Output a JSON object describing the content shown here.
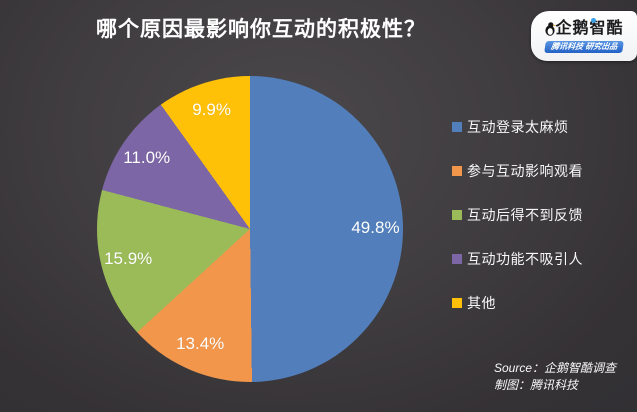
{
  "title": "哪个原因最影响你互动的积极性？",
  "logo": {
    "brand": "企鹅智酷",
    "tagline": "腾讯科技 研究出品",
    "banner_color": "#2e6ace"
  },
  "chart_data": {
    "type": "pie",
    "title": "哪个原因最影响你互动的积极性？",
    "labels": [
      "互动登录太麻烦",
      "参与互动影响观看",
      "互动后得不到反馈",
      "互动功能不吸引人",
      "其他"
    ],
    "values": [
      49.8,
      13.4,
      15.9,
      11.0,
      9.9
    ],
    "value_labels": [
      "49.8%",
      "13.4%",
      "15.9%",
      "11.0%",
      "9.9%"
    ],
    "colors": [
      "#527fbc",
      "#f2964b",
      "#9bbb59",
      "#7c66a5",
      "#ffc008"
    ],
    "start_angle_deg": 0,
    "direction": "clockwise",
    "legend_position": "right",
    "background_color": "#3d3a3d",
    "text_color": "#ffffff"
  },
  "footer": {
    "source": "Source：企鹅智酷调查",
    "credit": "制图：腾讯科技"
  }
}
